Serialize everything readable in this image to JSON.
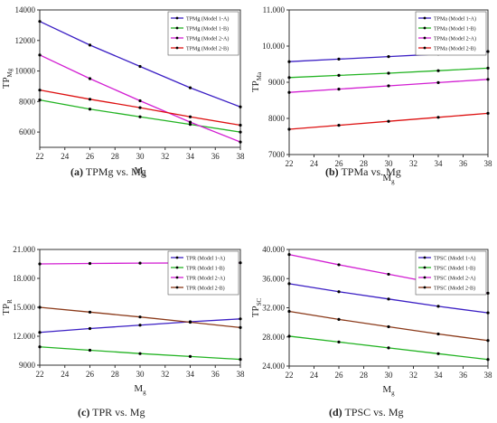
{
  "figure": {
    "captions": [
      {
        "label": "(a)",
        "text": "TPMg vs. Mg"
      },
      {
        "label": "(b)",
        "text": "TPMa vs. Mg"
      },
      {
        "label": "(c)",
        "text": "TPR vs. Mg"
      },
      {
        "label": "(d)",
        "text": "TPSC vs. Mg"
      }
    ]
  },
  "chart_data": [
    {
      "type": "line",
      "xlabel": "Mg",
      "ylabel": "TPMg",
      "x": [
        22,
        26,
        30,
        34,
        38
      ],
      "xlim": [
        22,
        38
      ],
      "xticks": [
        "22",
        "24",
        "26",
        "28",
        "30",
        "32",
        "34",
        "36",
        "38"
      ],
      "ylim": [
        5000,
        14000
      ],
      "yticks": [
        "6000",
        "8000",
        "10000",
        "12000",
        "14000"
      ],
      "legend_position": "top-right",
      "series": [
        {
          "name": "TPMg (Model 1-A)",
          "color": "#3b1fc4",
          "values": [
            13250,
            11700,
            10300,
            8900,
            7650
          ]
        },
        {
          "name": "TPMg (Model 1-B)",
          "color": "#22b322",
          "values": [
            8100,
            7500,
            7000,
            6500,
            6000
          ]
        },
        {
          "name": "TPMg (Model 2-A)",
          "color": "#d21ed2",
          "values": [
            11050,
            9500,
            8050,
            6650,
            5350
          ]
        },
        {
          "name": "TPMg (Model 2-B)",
          "color": "#dd1111",
          "values": [
            8750,
            8150,
            7600,
            7000,
            6450
          ]
        }
      ]
    },
    {
      "type": "line",
      "xlabel": "Mg",
      "ylabel": "TPMa",
      "x": [
        22,
        26,
        30,
        34,
        38
      ],
      "xlim": [
        22,
        38
      ],
      "xticks": [
        "22",
        "24",
        "26",
        "28",
        "30",
        "32",
        "34",
        "36",
        "38"
      ],
      "ylim": [
        7000,
        11000
      ],
      "yticks": [
        "7000",
        "8000",
        "9000",
        "10.000",
        "11.000"
      ],
      "legend_position": "top-right",
      "series": [
        {
          "name": "TPMa (Model 1-A)",
          "color": "#3b1fc4",
          "values": [
            9570,
            9640,
            9710,
            9780,
            9850
          ]
        },
        {
          "name": "TPMa (Model 1-B)",
          "color": "#22b322",
          "values": [
            9130,
            9190,
            9250,
            9320,
            9390
          ]
        },
        {
          "name": "TPMa (Model 2-A)",
          "color": "#d21ed2",
          "values": [
            8720,
            8810,
            8900,
            8990,
            9080
          ]
        },
        {
          "name": "TPMa (Model 2-B)",
          "color": "#dd1111",
          "values": [
            7700,
            7810,
            7920,
            8030,
            8140
          ]
        }
      ]
    },
    {
      "type": "line",
      "xlabel": "Mg",
      "ylabel": "TPR",
      "x": [
        22,
        26,
        30,
        34,
        38
      ],
      "xlim": [
        22,
        38
      ],
      "xticks": [
        "22",
        "24",
        "26",
        "28",
        "30",
        "32",
        "34",
        "36",
        "38"
      ],
      "ylim": [
        9000,
        21000
      ],
      "yticks": [
        "9000",
        "12.000",
        "15.000",
        "18.000",
        "21.000"
      ],
      "legend_position": "top-right",
      "series": [
        {
          "name": "TPR (Model 1-A)",
          "color": "#3b1fc4",
          "values": [
            12400,
            12800,
            13150,
            13500,
            13800
          ]
        },
        {
          "name": "TPR (Model 1-B)",
          "color": "#22b322",
          "values": [
            10900,
            10550,
            10200,
            9900,
            9600
          ]
        },
        {
          "name": "TPR (Model 2-A)",
          "color": "#d21ed2",
          "values": [
            19500,
            19550,
            19580,
            19600,
            19620
          ]
        },
        {
          "name": "TPR (Model 2-B)",
          "color": "#8b3a1a",
          "values": [
            15000,
            14500,
            14000,
            13450,
            12900
          ]
        }
      ]
    },
    {
      "type": "line",
      "xlabel": "Mg",
      "ylabel": "TPSC",
      "x": [
        22,
        26,
        30,
        34,
        38
      ],
      "xlim": [
        22,
        38
      ],
      "xticks": [
        "22",
        "24",
        "26",
        "28",
        "30",
        "32",
        "34",
        "36",
        "38"
      ],
      "ylim": [
        24000,
        40000
      ],
      "yticks": [
        "24.000",
        "28.000",
        "32.000",
        "36.000",
        "40.000"
      ],
      "legend_position": "top-right",
      "series": [
        {
          "name": "TPSC (Model 1-A)",
          "color": "#3b1fc4",
          "values": [
            35300,
            34200,
            33200,
            32200,
            31300
          ]
        },
        {
          "name": "TPSC (Model 1-B)",
          "color": "#22b322",
          "values": [
            28100,
            27300,
            26500,
            25700,
            24900
          ]
        },
        {
          "name": "TPSC (Model 2-A)",
          "color": "#d21ed2",
          "values": [
            39300,
            37900,
            36600,
            35300,
            34000
          ]
        },
        {
          "name": "TPSC (Model 2-B)",
          "color": "#8b3a1a",
          "values": [
            31500,
            30400,
            29400,
            28400,
            27500
          ]
        }
      ]
    }
  ]
}
